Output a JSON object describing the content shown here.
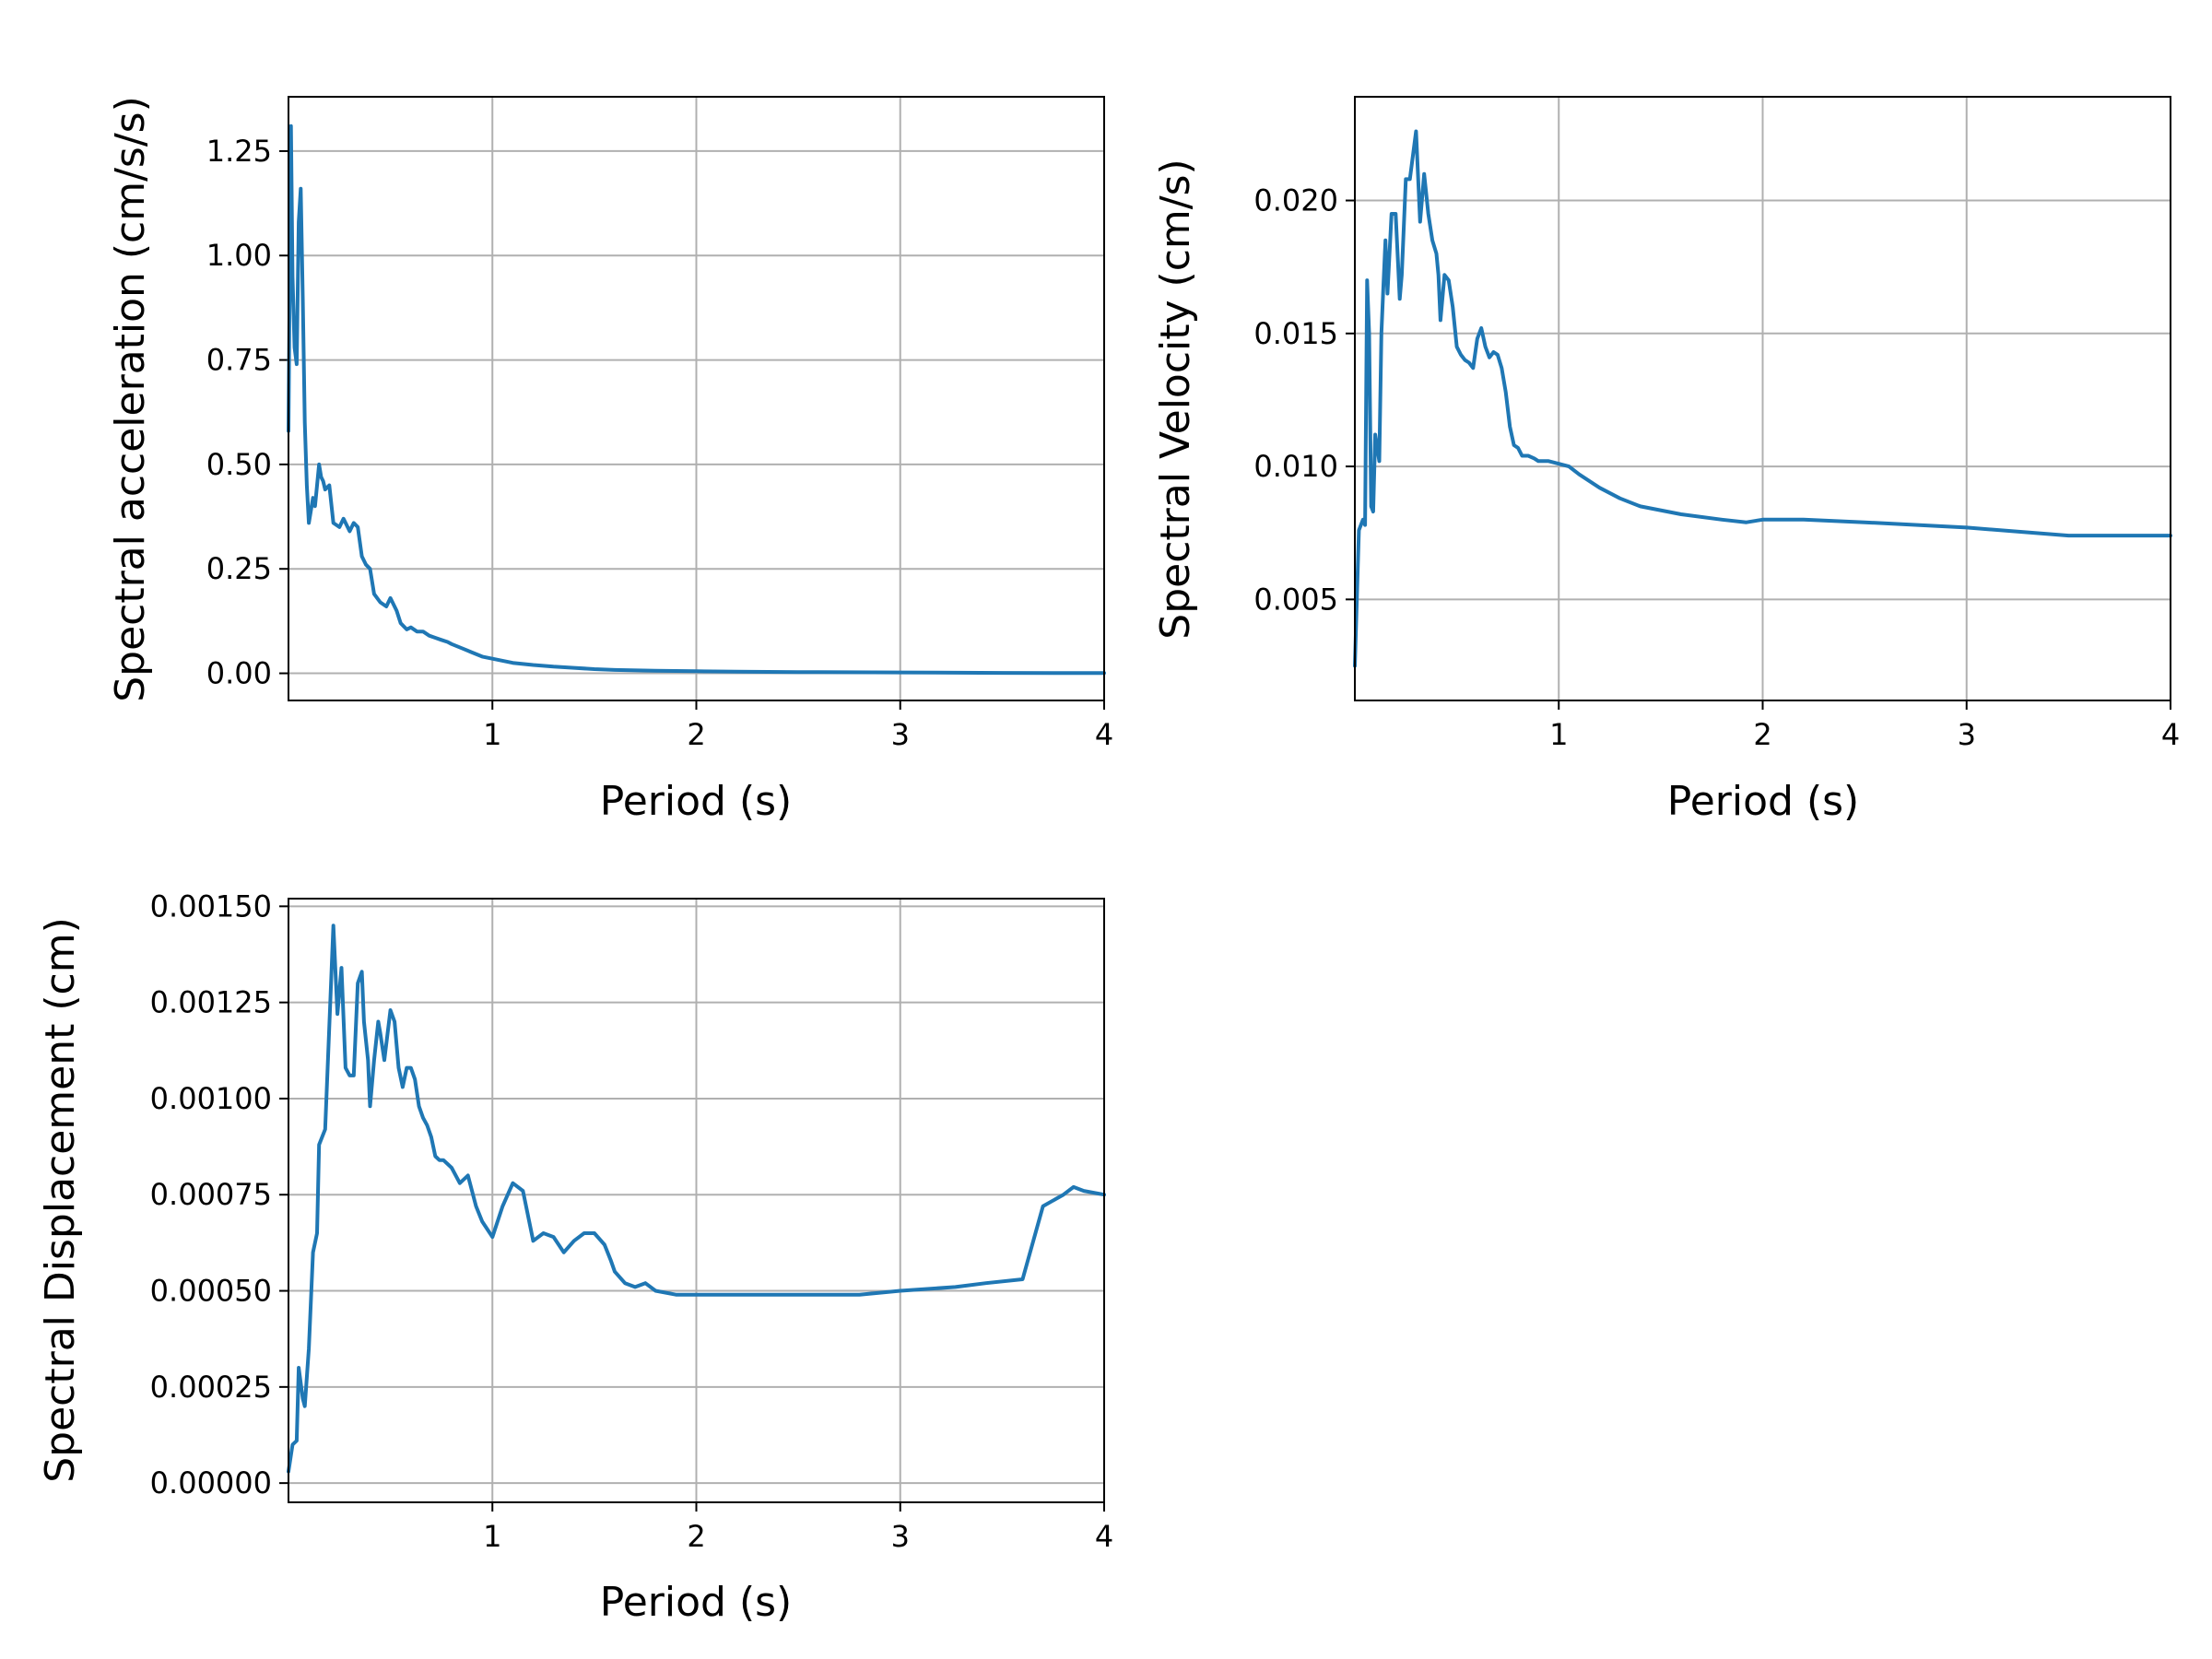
{
  "style": {
    "line_color": "#1f77b4",
    "grid_color": "#b0b0b0",
    "frame_color": "#000000",
    "background": "#ffffff"
  },
  "chart_data": [
    {
      "id": "spectral-acceleration",
      "type": "line",
      "title": "",
      "xlabel": "Period (s)",
      "ylabel": "Spectral acceleration (cm/s/s)",
      "xlim": [
        0.0,
        4.0
      ],
      "ylim": [
        -0.065,
        1.38
      ],
      "xticks": [
        1,
        2,
        3,
        4
      ],
      "xtick_labels": [
        "1",
        "2",
        "3",
        "4"
      ],
      "yticks": [
        0.0,
        0.25,
        0.5,
        0.75,
        1.0,
        1.25
      ],
      "ytick_labels": [
        "0.00",
        "0.25",
        "0.50",
        "0.75",
        "1.00",
        "1.25"
      ],
      "grid": true,
      "series": [
        {
          "x": [
            0.0,
            0.012,
            0.02,
            0.03,
            0.04,
            0.05,
            0.06,
            0.07,
            0.08,
            0.09,
            0.1,
            0.12,
            0.13,
            0.15,
            0.16,
            0.17,
            0.18,
            0.2,
            0.22,
            0.25,
            0.27,
            0.3,
            0.32,
            0.34,
            0.36,
            0.38,
            0.4,
            0.42,
            0.45,
            0.48,
            0.5,
            0.53,
            0.55,
            0.58,
            0.6,
            0.63,
            0.66,
            0.69,
            0.72,
            0.75,
            0.78,
            0.8,
            0.85,
            0.9,
            0.95,
            1.0,
            1.05,
            1.1,
            1.2,
            1.3,
            1.4,
            1.5,
            1.6,
            1.8,
            2.0,
            2.2,
            2.5,
            3.0,
            3.5,
            4.0
          ],
          "y": [
            0.58,
            1.31,
            0.95,
            0.78,
            0.74,
            1.08,
            1.16,
            0.9,
            0.6,
            0.45,
            0.36,
            0.42,
            0.4,
            0.5,
            0.47,
            0.46,
            0.44,
            0.45,
            0.36,
            0.35,
            0.37,
            0.34,
            0.36,
            0.35,
            0.28,
            0.26,
            0.25,
            0.19,
            0.17,
            0.16,
            0.18,
            0.15,
            0.12,
            0.105,
            0.11,
            0.1,
            0.1,
            0.09,
            0.085,
            0.08,
            0.075,
            0.07,
            0.06,
            0.05,
            0.04,
            0.035,
            0.03,
            0.025,
            0.02,
            0.016,
            0.013,
            0.01,
            0.008,
            0.006,
            0.005,
            0.004,
            0.003,
            0.002,
            0.001,
            0.0005
          ]
        }
      ]
    },
    {
      "id": "spectral-velocity",
      "type": "line",
      "title": "",
      "xlabel": "Period (s)",
      "ylabel": "Spectral Velocity (cm/s)",
      "xlim": [
        0.0,
        4.0
      ],
      "ylim": [
        0.0012,
        0.0239
      ],
      "xticks": [
        1,
        2,
        3,
        4
      ],
      "xtick_labels": [
        "1",
        "2",
        "3",
        "4"
      ],
      "yticks": [
        0.005,
        0.01,
        0.015,
        0.02
      ],
      "ytick_labels": [
        "0.005",
        "0.010",
        "0.015",
        "0.020"
      ],
      "grid": true,
      "series": [
        {
          "x": [
            0.0,
            0.02,
            0.04,
            0.05,
            0.06,
            0.07,
            0.08,
            0.09,
            0.1,
            0.12,
            0.13,
            0.14,
            0.15,
            0.16,
            0.18,
            0.2,
            0.22,
            0.23,
            0.25,
            0.27,
            0.3,
            0.32,
            0.34,
            0.36,
            0.38,
            0.4,
            0.41,
            0.42,
            0.44,
            0.46,
            0.48,
            0.5,
            0.52,
            0.54,
            0.56,
            0.58,
            0.6,
            0.62,
            0.64,
            0.66,
            0.68,
            0.7,
            0.72,
            0.74,
            0.76,
            0.78,
            0.8,
            0.82,
            0.85,
            0.88,
            0.9,
            0.95,
            1.0,
            1.05,
            1.1,
            1.2,
            1.3,
            1.4,
            1.6,
            1.8,
            1.92,
            2.0,
            2.2,
            2.5,
            3.0,
            3.5,
            3.6,
            4.0
          ],
          "y": [
            0.0025,
            0.0076,
            0.008,
            0.0078,
            0.017,
            0.015,
            0.0085,
            0.0083,
            0.0112,
            0.0102,
            0.015,
            0.0168,
            0.0185,
            0.0165,
            0.0195,
            0.0195,
            0.0163,
            0.0172,
            0.0208,
            0.0208,
            0.0226,
            0.0192,
            0.021,
            0.0195,
            0.0185,
            0.018,
            0.0172,
            0.0155,
            0.0172,
            0.017,
            0.016,
            0.0145,
            0.0142,
            0.014,
            0.0139,
            0.0137,
            0.0148,
            0.0152,
            0.0145,
            0.0141,
            0.0143,
            0.0142,
            0.0137,
            0.0128,
            0.0115,
            0.0108,
            0.0107,
            0.0104,
            0.0104,
            0.0103,
            0.0102,
            0.0102,
            0.0101,
            0.01,
            0.0097,
            0.0092,
            0.0088,
            0.0085,
            0.0082,
            0.008,
            0.0079,
            0.008,
            0.008,
            0.0079,
            0.0077,
            0.0074,
            0.0074,
            0.0074
          ]
        }
      ]
    },
    {
      "id": "spectral-displacement",
      "type": "line",
      "title": "",
      "xlabel": "Period (s)",
      "ylabel": "Spectral Displacement (cm)",
      "xlim": [
        0.0,
        4.0
      ],
      "ylim": [
        -5e-05,
        0.00152
      ],
      "xticks": [
        1,
        2,
        3,
        4
      ],
      "xtick_labels": [
        "1",
        "2",
        "3",
        "4"
      ],
      "yticks": [
        0.0,
        0.00025,
        0.0005,
        0.00075,
        0.001,
        0.00125,
        0.0015
      ],
      "ytick_labels": [
        "0.00000",
        "0.00025",
        "0.00050",
        "0.00075",
        "0.00100",
        "0.00125",
        "0.00150"
      ],
      "grid": true,
      "series": [
        {
          "x": [
            0.0,
            0.02,
            0.04,
            0.05,
            0.07,
            0.08,
            0.1,
            0.12,
            0.14,
            0.15,
            0.18,
            0.22,
            0.24,
            0.26,
            0.28,
            0.3,
            0.32,
            0.34,
            0.36,
            0.37,
            0.39,
            0.4,
            0.42,
            0.44,
            0.45,
            0.47,
            0.5,
            0.52,
            0.54,
            0.56,
            0.58,
            0.6,
            0.62,
            0.64,
            0.66,
            0.68,
            0.7,
            0.72,
            0.74,
            0.76,
            0.8,
            0.84,
            0.88,
            0.92,
            0.95,
            1.0,
            1.05,
            1.1,
            1.15,
            1.2,
            1.25,
            1.3,
            1.35,
            1.4,
            1.45,
            1.5,
            1.55,
            1.58,
            1.6,
            1.65,
            1.7,
            1.75,
            1.8,
            1.9,
            2.0,
            2.1,
            2.15,
            2.3,
            2.5,
            2.8,
            3.0,
            3.27,
            3.42,
            3.6,
            3.7,
            3.8,
            3.85,
            3.9,
            4.0
          ],
          "y": [
            3e-05,
            0.0001,
            0.00011,
            0.0003,
            0.00022,
            0.0002,
            0.00035,
            0.0006,
            0.00065,
            0.00088,
            0.00092,
            0.00145,
            0.00122,
            0.00134,
            0.00108,
            0.00106,
            0.00106,
            0.0013,
            0.00133,
            0.0012,
            0.0011,
            0.00098,
            0.0011,
            0.0012,
            0.00117,
            0.0011,
            0.00123,
            0.0012,
            0.00108,
            0.00103,
            0.00108,
            0.00108,
            0.00105,
            0.00098,
            0.00095,
            0.00093,
            0.0009,
            0.00085,
            0.00084,
            0.00084,
            0.00082,
            0.00078,
            0.0008,
            0.00072,
            0.00068,
            0.00064,
            0.00072,
            0.00078,
            0.00076,
            0.00063,
            0.00065,
            0.00064,
            0.0006,
            0.00063,
            0.00065,
            0.00065,
            0.00062,
            0.00058,
            0.00055,
            0.00052,
            0.00051,
            0.00052,
            0.0005,
            0.00049,
            0.00049,
            0.00049,
            0.00049,
            0.00049,
            0.00049,
            0.00049,
            0.0005,
            0.00051,
            0.00052,
            0.00053,
            0.00072,
            0.00075,
            0.00077,
            0.00076,
            0.00075
          ]
        }
      ]
    }
  ]
}
